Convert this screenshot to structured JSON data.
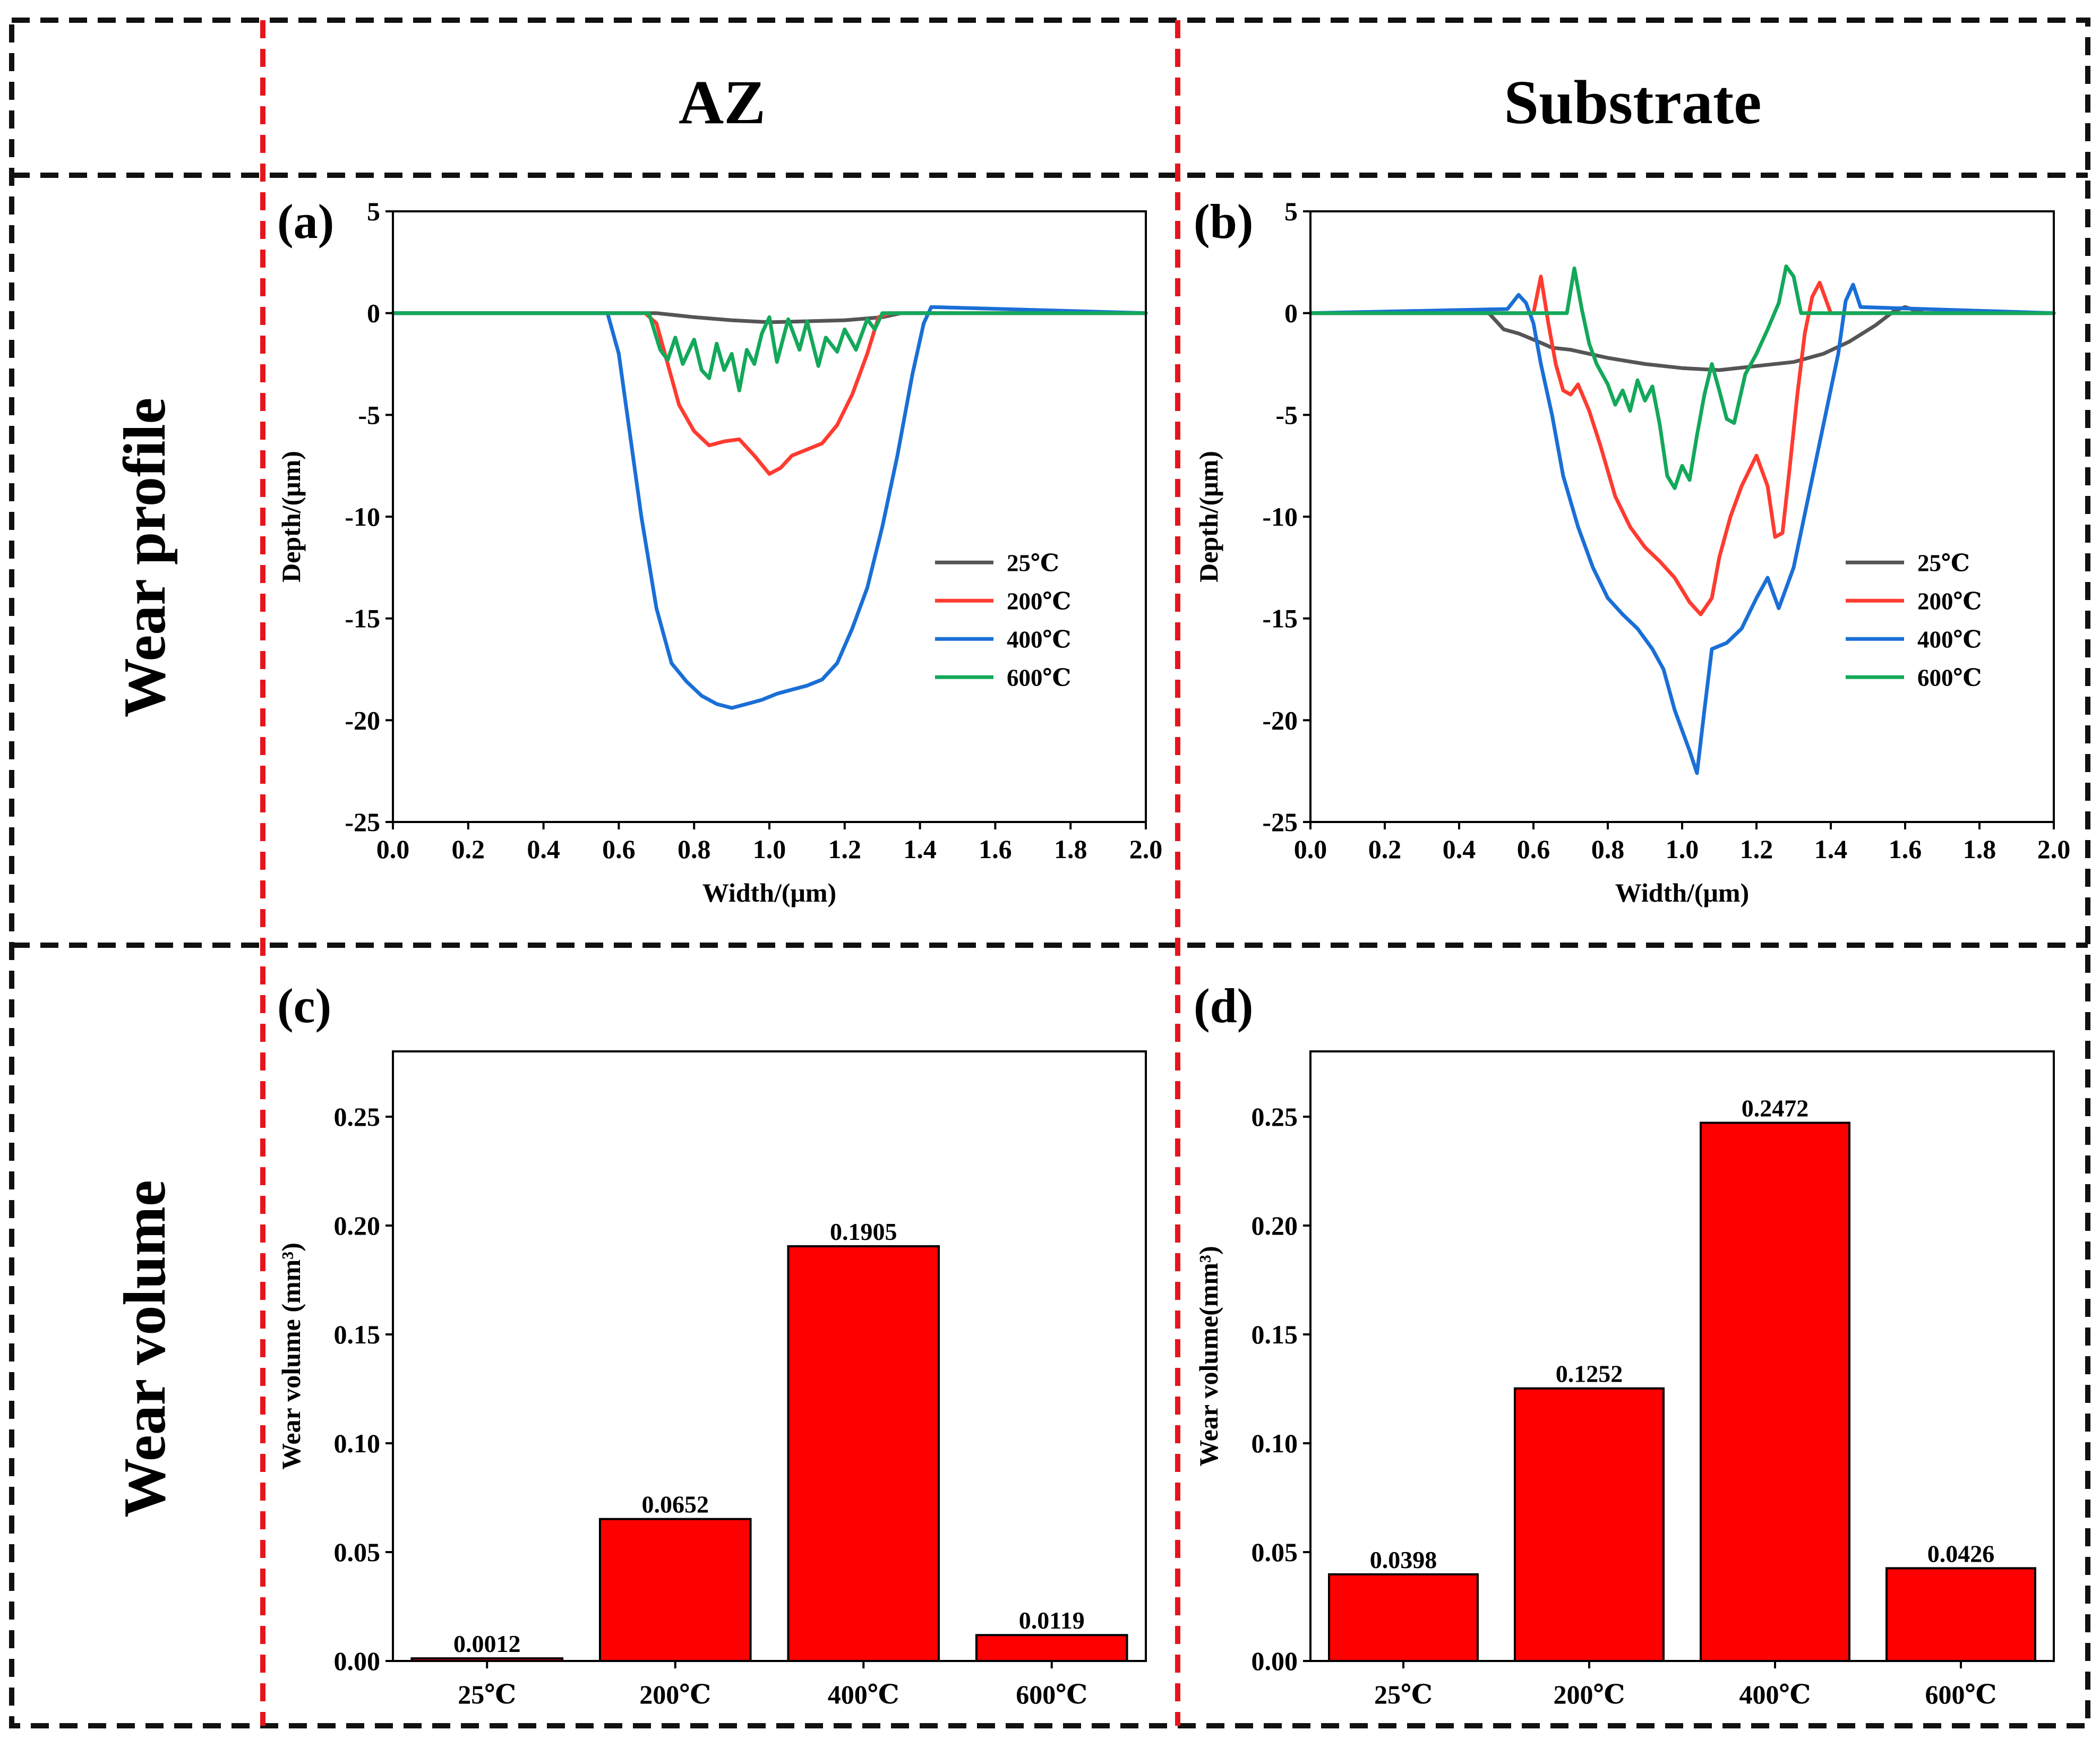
{
  "headers": {
    "left": "AZ",
    "right": "Substrate"
  },
  "rows": {
    "top": "Wear profile",
    "bottom": "Wear volume"
  },
  "colors": {
    "25℃": "#555555",
    "200℃": "#ff3b30",
    "400℃": "#1a6fd6",
    "600℃": "#13a85a",
    "bar": "#ff0000"
  },
  "chart_data": [
    {
      "panel": "(a)",
      "type": "line",
      "xlabel": "Width/(μm)",
      "ylabel": "Depth/(μm)",
      "xlim": [
        0,
        2.0
      ],
      "ylim": [
        -25,
        5
      ],
      "xticks": [
        "0.0",
        "0.2",
        "0.4",
        "0.6",
        "0.8",
        "1.0",
        "1.2",
        "1.4",
        "1.6",
        "1.8",
        "2.0"
      ],
      "yticks": [
        "5",
        "0",
        "-5",
        "-10",
        "-15",
        "-20",
        "-25"
      ],
      "legend": "lower-right",
      "grid": false,
      "series": [
        {
          "name": "25℃",
          "color": "#555555",
          "x": [
            0,
            0.7,
            0.8,
            0.9,
            1.0,
            1.1,
            1.2,
            1.3,
            1.35,
            2.0
          ],
          "y": [
            0,
            0,
            -0.2,
            -0.35,
            -0.45,
            -0.4,
            -0.35,
            -0.2,
            0,
            0
          ]
        },
        {
          "name": "200℃",
          "color": "#ff3b30",
          "x": [
            0,
            0.67,
            0.7,
            0.73,
            0.76,
            0.8,
            0.84,
            0.88,
            0.92,
            0.96,
            1.0,
            1.03,
            1.06,
            1.1,
            1.14,
            1.18,
            1.22,
            1.26,
            1.29,
            1.32,
            1.35,
            2.0
          ],
          "y": [
            0,
            0,
            -0.5,
            -2.5,
            -4.5,
            -5.8,
            -6.5,
            -6.3,
            -6.2,
            -7.0,
            -7.9,
            -7.6,
            -7.0,
            -6.7,
            -6.4,
            -5.5,
            -4.0,
            -2.0,
            -0.2,
            0,
            0,
            0
          ]
        },
        {
          "name": "400℃",
          "color": "#1a6fd6",
          "x": [
            0,
            0.57,
            0.6,
            0.63,
            0.66,
            0.7,
            0.74,
            0.78,
            0.82,
            0.86,
            0.9,
            0.94,
            0.98,
            1.02,
            1.06,
            1.1,
            1.14,
            1.18,
            1.22,
            1.26,
            1.3,
            1.34,
            1.38,
            1.41,
            1.43,
            2.0
          ],
          "y": [
            0,
            0,
            -2,
            -6,
            -10,
            -14.5,
            -17.2,
            -18.1,
            -18.8,
            -19.2,
            -19.4,
            -19.2,
            -19.0,
            -18.7,
            -18.5,
            -18.3,
            -18.0,
            -17.2,
            -15.5,
            -13.5,
            -10.5,
            -7.0,
            -3.0,
            -0.5,
            0.3,
            0
          ]
        },
        {
          "name": "600℃",
          "color": "#13a85a",
          "x": [
            0,
            0.68,
            0.71,
            0.73,
            0.75,
            0.77,
            0.8,
            0.82,
            0.84,
            0.86,
            0.88,
            0.9,
            0.92,
            0.94,
            0.96,
            0.98,
            1.0,
            1.02,
            1.05,
            1.08,
            1.1,
            1.13,
            1.15,
            1.18,
            1.2,
            1.23,
            1.26,
            1.28,
            1.3,
            2.0
          ],
          "y": [
            0,
            0,
            -1.8,
            -2.3,
            -1.2,
            -2.5,
            -1.3,
            -2.8,
            -3.2,
            -1.5,
            -2.8,
            -2.0,
            -3.8,
            -1.8,
            -2.5,
            -1.0,
            -0.2,
            -2.4,
            -0.3,
            -1.8,
            -0.4,
            -2.6,
            -1.2,
            -1.9,
            -0.8,
            -1.8,
            -0.3,
            -0.8,
            0,
            0
          ]
        }
      ]
    },
    {
      "panel": "(b)",
      "type": "line",
      "xlabel": "Width/(μm)",
      "ylabel": "Depth/(μm)",
      "xlim": [
        0,
        2.0
      ],
      "ylim": [
        -25,
        5
      ],
      "xticks": [
        "0.0",
        "0.2",
        "0.4",
        "0.6",
        "0.8",
        "1.0",
        "1.2",
        "1.4",
        "1.6",
        "1.8",
        "2.0"
      ],
      "yticks": [
        "5",
        "0",
        "-5",
        "-10",
        "-15",
        "-20",
        "-25"
      ],
      "legend": "lower-right",
      "grid": false,
      "series": [
        {
          "name": "25℃",
          "color": "#555555",
          "x": [
            0,
            0.48,
            0.52,
            0.56,
            0.6,
            0.65,
            0.7,
            0.8,
            0.9,
            1.0,
            1.1,
            1.2,
            1.3,
            1.38,
            1.45,
            1.52,
            1.57,
            1.6,
            1.65,
            2.0
          ],
          "y": [
            0,
            0,
            -0.8,
            -1.0,
            -1.3,
            -1.7,
            -1.8,
            -2.2,
            -2.5,
            -2.7,
            -2.8,
            -2.6,
            -2.4,
            -2.0,
            -1.4,
            -0.6,
            0.1,
            0.3,
            0,
            0
          ]
        },
        {
          "name": "200℃",
          "color": "#ff3b30",
          "x": [
            0,
            0.6,
            0.62,
            0.64,
            0.66,
            0.68,
            0.7,
            0.72,
            0.75,
            0.78,
            0.82,
            0.86,
            0.9,
            0.94,
            0.98,
            1.02,
            1.05,
            1.08,
            1.1,
            1.13,
            1.16,
            1.2,
            1.23,
            1.25,
            1.27,
            1.29,
            1.31,
            1.33,
            1.35,
            1.37,
            1.4,
            2.0
          ],
          "y": [
            0,
            0,
            1.8,
            -0.5,
            -2.5,
            -3.8,
            -4.0,
            -3.5,
            -4.8,
            -6.5,
            -9.0,
            -10.5,
            -11.5,
            -12.2,
            -13.0,
            -14.2,
            -14.8,
            -14.0,
            -12.0,
            -10.0,
            -8.5,
            -7.0,
            -8.5,
            -11.0,
            -10.8,
            -7.5,
            -4.0,
            -1.0,
            0.8,
            1.5,
            0,
            0
          ]
        },
        {
          "name": "400℃",
          "color": "#1a6fd6",
          "x": [
            0,
            0.53,
            0.56,
            0.58,
            0.6,
            0.62,
            0.65,
            0.68,
            0.72,
            0.76,
            0.8,
            0.84,
            0.88,
            0.92,
            0.95,
            0.98,
            1.0,
            1.02,
            1.04,
            1.06,
            1.08,
            1.12,
            1.16,
            1.2,
            1.23,
            1.26,
            1.3,
            1.34,
            1.38,
            1.42,
            1.44,
            1.46,
            1.48,
            2.0
          ],
          "y": [
            0,
            0.2,
            0.9,
            0.5,
            -0.5,
            -2.5,
            -5.0,
            -8.0,
            -10.5,
            -12.5,
            -14.0,
            -14.8,
            -15.5,
            -16.5,
            -17.5,
            -19.5,
            -20.5,
            -21.5,
            -22.6,
            -19.5,
            -16.5,
            -16.2,
            -15.5,
            -14.0,
            -13.0,
            -14.5,
            -12.5,
            -9.0,
            -5.5,
            -2.0,
            0.6,
            1.4,
            0.3,
            0
          ]
        },
        {
          "name": "600℃",
          "color": "#13a85a",
          "x": [
            0,
            0.69,
            0.71,
            0.73,
            0.75,
            0.77,
            0.8,
            0.82,
            0.84,
            0.86,
            0.88,
            0.9,
            0.92,
            0.94,
            0.96,
            0.98,
            1.0,
            1.02,
            1.04,
            1.06,
            1.08,
            1.1,
            1.12,
            1.14,
            1.17,
            1.2,
            1.23,
            1.26,
            1.28,
            1.3,
            1.32,
            2.0
          ],
          "y": [
            0,
            0,
            2.2,
            0.2,
            -1.5,
            -2.5,
            -3.5,
            -4.5,
            -3.8,
            -4.8,
            -3.3,
            -4.3,
            -3.6,
            -5.5,
            -8.0,
            -8.6,
            -7.5,
            -8.2,
            -6.0,
            -4.0,
            -2.5,
            -3.8,
            -5.2,
            -5.4,
            -3.0,
            -2.0,
            -0.8,
            0.5,
            2.3,
            1.8,
            0,
            0
          ]
        }
      ]
    },
    {
      "panel": "(c)",
      "type": "bar",
      "categories": [
        "25℃",
        "200℃",
        "400℃",
        "600℃"
      ],
      "values": [
        0.0012,
        0.0652,
        0.1905,
        0.0119
      ],
      "labels": [
        "0.0012",
        "0.0652",
        "0.1905",
        "0.0119"
      ],
      "ylabel": "Wear volume (mm³)",
      "xlabel": "",
      "ylim": [
        0,
        0.28
      ],
      "yticks": [
        "0.00",
        "0.05",
        "0.10",
        "0.15",
        "0.20",
        "0.25"
      ],
      "grid": false
    },
    {
      "panel": "(d)",
      "type": "bar",
      "categories": [
        "25℃",
        "200℃",
        "400℃",
        "600℃"
      ],
      "values": [
        0.0398,
        0.1252,
        0.2472,
        0.0426
      ],
      "labels": [
        "0.0398",
        "0.1252",
        "0.2472",
        "0.0426"
      ],
      "ylabel": "Wear volume(mm³)",
      "xlabel": "",
      "ylim": [
        0,
        0.28
      ],
      "yticks": [
        "0.00",
        "0.05",
        "0.10",
        "0.15",
        "0.20",
        "0.25"
      ],
      "grid": false
    }
  ]
}
